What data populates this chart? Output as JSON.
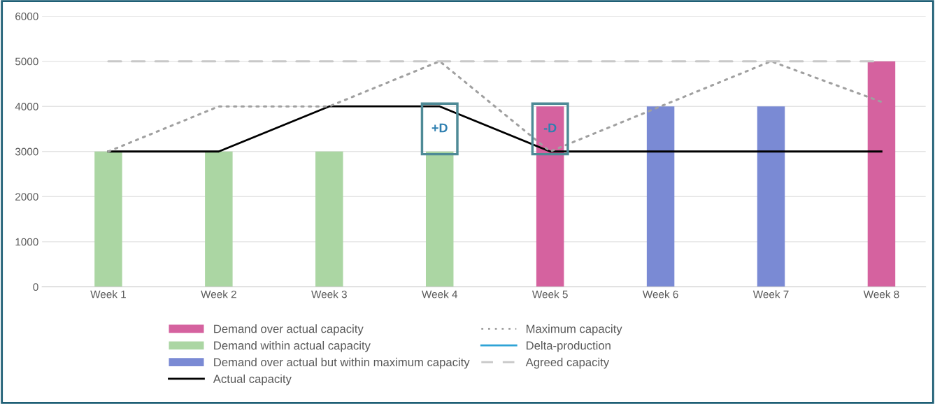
{
  "chart_data": {
    "type": "bar",
    "categories": [
      "Week 1",
      "Week 2",
      "Week 3",
      "Week 4",
      "Week 5",
      "Week 6",
      "Week 7",
      "Week 8"
    ],
    "series": [
      {
        "name": "Demand over actual capacity",
        "color": "#d5629f",
        "values": [
          null,
          null,
          null,
          null,
          4000,
          null,
          null,
          5000
        ]
      },
      {
        "name": "Demand within actual capacity",
        "color": "#abd6a3",
        "values": [
          3000,
          3000,
          3000,
          3000,
          null,
          null,
          null,
          null
        ]
      },
      {
        "name": "Demand over actual but within maximum capacity",
        "color": "#7a8ad4",
        "values": [
          null,
          null,
          null,
          null,
          null,
          4000,
          4000,
          null
        ]
      },
      {
        "name": "Actual capacity",
        "type": "line",
        "color": "#000000",
        "line_style": "solid",
        "values": [
          3000,
          3000,
          4000,
          4000,
          3000,
          3000,
          3000,
          3000
        ]
      },
      {
        "name": "Maximum capacity",
        "type": "line",
        "color": "#a0a0a0",
        "line_style": "dotted",
        "values": [
          3000,
          4000,
          4000,
          5000,
          3000,
          4000,
          5000,
          4100
        ]
      },
      {
        "name": "Delta-production",
        "type": "line",
        "color": "#2ea3d6",
        "line_style": "solid",
        "values": [
          null,
          null,
          null,
          null,
          null,
          null,
          null,
          null
        ]
      },
      {
        "name": "Agreed capacity",
        "type": "line",
        "color": "#c8c8c8",
        "line_style": "dashed",
        "values": [
          5000,
          5000,
          5000,
          5000,
          5000,
          5000,
          5000,
          5000
        ]
      }
    ],
    "ylim": [
      0,
      6000
    ],
    "yticks": [
      0,
      1000,
      2000,
      3000,
      4000,
      5000,
      6000
    ],
    "grid": "y",
    "legend": "bottom",
    "annotations": [
      {
        "text": "+D",
        "x": "Week 4",
        "y": 4000
      },
      {
        "text": "-D",
        "x": "Week 5",
        "y": 4000
      }
    ]
  }
}
